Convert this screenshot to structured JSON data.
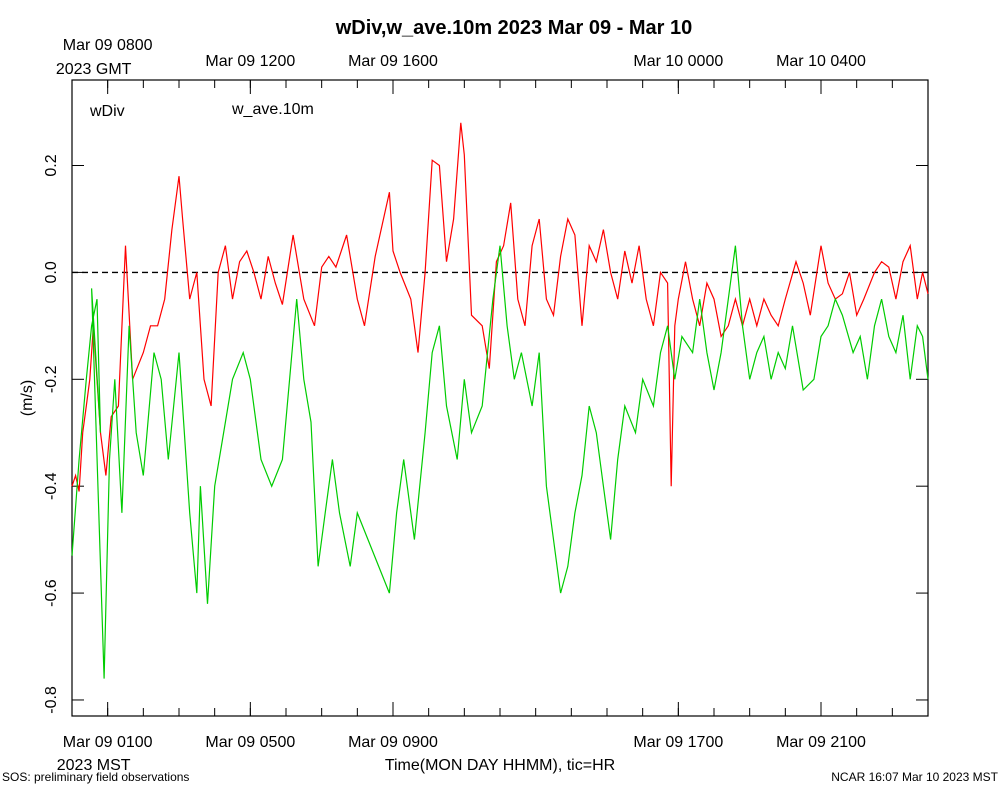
{
  "chart_data": {
    "type": "line",
    "title": "wDiv,w_ave.10m 2023 Mar 09 - Mar 10",
    "xlabel": "Time(MON DAY HHMM), tic=HR",
    "ylabel": "(m/s)",
    "x_unit": "hours since Mar 09 0000 MST",
    "xlim": [
      0,
      24
    ],
    "ylim": [
      -0.83,
      0.36
    ],
    "yticks": [
      0.2,
      0.0,
      -0.2,
      -0.4,
      -0.6,
      -0.8
    ],
    "ytick_labels": [
      "0.2",
      "0.0",
      "-0.2",
      "-0.4",
      "-0.6",
      "-0.8"
    ],
    "bottom_ticks": [
      {
        "x": 1,
        "label": "Mar 09 0100",
        "sub": "2023 MST"
      },
      {
        "x": 5,
        "label": "Mar 09 0500"
      },
      {
        "x": 9,
        "label": "Mar 09 0900"
      },
      {
        "x": 17,
        "label": "Mar 09 1700"
      },
      {
        "x": 21,
        "label": "Mar 09 2100"
      }
    ],
    "top_ticks": [
      {
        "x": 1,
        "label": "Mar 09 0800",
        "sub": "2023 GMT"
      },
      {
        "x": 5,
        "label": "Mar 09 1200"
      },
      {
        "x": 9,
        "label": "Mar 09 1600"
      },
      {
        "x": 17,
        "label": "Mar 10 0000"
      },
      {
        "x": 21,
        "label": "Mar 10 0400"
      }
    ],
    "reference_line": 0.0,
    "series": [
      {
        "name": "wDiv",
        "color": "#ff0000",
        "keypoints": [
          [
            0.0,
            -0.4
          ],
          [
            0.1,
            -0.38
          ],
          [
            0.2,
            -0.41
          ],
          [
            0.3,
            -0.3
          ],
          [
            0.4,
            -0.25
          ],
          [
            0.5,
            -0.2
          ],
          [
            0.6,
            -0.1
          ],
          [
            0.8,
            -0.3
          ],
          [
            0.95,
            -0.38
          ],
          [
            1.1,
            -0.27
          ],
          [
            1.3,
            -0.25
          ],
          [
            1.5,
            0.05
          ],
          [
            1.7,
            -0.2
          ],
          [
            2.0,
            -0.15
          ],
          [
            2.2,
            -0.1
          ],
          [
            2.4,
            -0.1
          ],
          [
            2.6,
            -0.05
          ],
          [
            2.8,
            0.08
          ],
          [
            3.0,
            0.18
          ],
          [
            3.1,
            0.1
          ],
          [
            3.3,
            -0.05
          ],
          [
            3.5,
            0.0
          ],
          [
            3.7,
            -0.2
          ],
          [
            3.9,
            -0.25
          ],
          [
            4.1,
            0.0
          ],
          [
            4.3,
            0.05
          ],
          [
            4.5,
            -0.05
          ],
          [
            4.7,
            0.02
          ],
          [
            4.9,
            0.04
          ],
          [
            5.1,
            0.0
          ],
          [
            5.3,
            -0.05
          ],
          [
            5.5,
            0.03
          ],
          [
            5.7,
            -0.02
          ],
          [
            5.9,
            -0.06
          ],
          [
            6.2,
            0.07
          ],
          [
            6.5,
            -0.05
          ],
          [
            6.8,
            -0.1
          ],
          [
            7.0,
            0.01
          ],
          [
            7.2,
            0.03
          ],
          [
            7.4,
            0.01
          ],
          [
            7.7,
            0.07
          ],
          [
            8.0,
            -0.05
          ],
          [
            8.2,
            -0.1
          ],
          [
            8.5,
            0.03
          ],
          [
            8.7,
            0.09
          ],
          [
            8.9,
            0.15
          ],
          [
            9.0,
            0.04
          ],
          [
            9.2,
            0.0
          ],
          [
            9.5,
            -0.05
          ],
          [
            9.7,
            -0.15
          ],
          [
            9.9,
            0.0
          ],
          [
            10.1,
            0.21
          ],
          [
            10.3,
            0.2
          ],
          [
            10.5,
            0.02
          ],
          [
            10.7,
            0.1
          ],
          [
            10.9,
            0.28
          ],
          [
            11.0,
            0.22
          ],
          [
            11.2,
            -0.08
          ],
          [
            11.5,
            -0.1
          ],
          [
            11.7,
            -0.18
          ],
          [
            11.9,
            0.02
          ],
          [
            12.1,
            0.05
          ],
          [
            12.3,
            0.13
          ],
          [
            12.5,
            -0.05
          ],
          [
            12.7,
            -0.1
          ],
          [
            12.9,
            0.05
          ],
          [
            13.1,
            0.1
          ],
          [
            13.3,
            -0.05
          ],
          [
            13.5,
            -0.08
          ],
          [
            13.7,
            0.03
          ],
          [
            13.9,
            0.1
          ],
          [
            14.1,
            0.07
          ],
          [
            14.3,
            -0.1
          ],
          [
            14.5,
            0.05
          ],
          [
            14.7,
            0.02
          ],
          [
            14.9,
            0.08
          ],
          [
            15.1,
            0.0
          ],
          [
            15.3,
            -0.05
          ],
          [
            15.5,
            0.04
          ],
          [
            15.7,
            -0.02
          ],
          [
            15.9,
            0.05
          ],
          [
            16.1,
            -0.05
          ],
          [
            16.3,
            -0.1
          ],
          [
            16.5,
            0.0
          ],
          [
            16.7,
            -0.02
          ],
          [
            16.8,
            -0.4
          ],
          [
            16.9,
            -0.1
          ],
          [
            17.0,
            -0.05
          ],
          [
            17.2,
            0.02
          ],
          [
            17.4,
            -0.05
          ],
          [
            17.6,
            -0.1
          ],
          [
            17.8,
            -0.02
          ],
          [
            18.0,
            -0.05
          ],
          [
            18.2,
            -0.12
          ],
          [
            18.4,
            -0.1
          ],
          [
            18.6,
            -0.05
          ],
          [
            18.8,
            -0.1
          ],
          [
            19.0,
            -0.05
          ],
          [
            19.2,
            -0.1
          ],
          [
            19.4,
            -0.05
          ],
          [
            19.6,
            -0.08
          ],
          [
            19.8,
            -0.1
          ],
          [
            20.0,
            -0.05
          ],
          [
            20.3,
            0.02
          ],
          [
            20.5,
            -0.02
          ],
          [
            20.7,
            -0.08
          ],
          [
            21.0,
            0.05
          ],
          [
            21.2,
            -0.02
          ],
          [
            21.4,
            -0.05
          ],
          [
            21.6,
            -0.04
          ],
          [
            21.8,
            0.0
          ],
          [
            22.0,
            -0.08
          ],
          [
            22.2,
            -0.05
          ],
          [
            22.5,
            0.0
          ],
          [
            22.7,
            0.02
          ],
          [
            22.9,
            0.01
          ],
          [
            23.1,
            -0.05
          ],
          [
            23.3,
            0.02
          ],
          [
            23.5,
            0.05
          ],
          [
            23.7,
            -0.05
          ],
          [
            23.85,
            0.0
          ],
          [
            24.0,
            -0.04
          ]
        ]
      },
      {
        "name": "w_ave.10m",
        "color": "#00cc00",
        "keypoints": [
          [
            0.0,
            -0.53
          ],
          [
            0.2,
            -0.35
          ],
          [
            0.4,
            -0.2
          ],
          [
            0.55,
            -0.1
          ],
          [
            0.7,
            -0.05
          ],
          [
            0.8,
            -0.3
          ],
          [
            0.55,
            -0.03
          ],
          [
            0.9,
            -0.76
          ],
          [
            1.05,
            -0.35
          ],
          [
            1.2,
            -0.2
          ],
          [
            1.4,
            -0.45
          ],
          [
            1.6,
            -0.1
          ],
          [
            1.8,
            -0.3
          ],
          [
            2.0,
            -0.38
          ],
          [
            2.3,
            -0.15
          ],
          [
            2.5,
            -0.2
          ],
          [
            2.7,
            -0.35
          ],
          [
            3.0,
            -0.15
          ],
          [
            3.3,
            -0.45
          ],
          [
            3.5,
            -0.6
          ],
          [
            3.6,
            -0.4
          ],
          [
            3.8,
            -0.62
          ],
          [
            4.0,
            -0.4
          ],
          [
            4.3,
            -0.28
          ],
          [
            4.5,
            -0.2
          ],
          [
            4.8,
            -0.15
          ],
          [
            5.0,
            -0.2
          ],
          [
            5.3,
            -0.35
          ],
          [
            5.6,
            -0.4
          ],
          [
            5.9,
            -0.35
          ],
          [
            6.1,
            -0.2
          ],
          [
            6.3,
            -0.05
          ],
          [
            6.5,
            -0.2
          ],
          [
            6.7,
            -0.28
          ],
          [
            6.9,
            -0.55
          ],
          [
            7.1,
            -0.45
          ],
          [
            7.3,
            -0.35
          ],
          [
            7.5,
            -0.45
          ],
          [
            7.8,
            -0.55
          ],
          [
            8.0,
            -0.45
          ],
          [
            8.3,
            -0.5
          ],
          [
            8.6,
            -0.55
          ],
          [
            8.9,
            -0.6
          ],
          [
            9.1,
            -0.45
          ],
          [
            9.3,
            -0.35
          ],
          [
            9.6,
            -0.5
          ],
          [
            9.9,
            -0.3
          ],
          [
            10.1,
            -0.15
          ],
          [
            10.3,
            -0.1
          ],
          [
            10.5,
            -0.25
          ],
          [
            10.8,
            -0.35
          ],
          [
            11.0,
            -0.2
          ],
          [
            11.2,
            -0.3
          ],
          [
            11.5,
            -0.25
          ],
          [
            11.8,
            -0.05
          ],
          [
            12.0,
            0.05
          ],
          [
            12.2,
            -0.1
          ],
          [
            12.4,
            -0.2
          ],
          [
            12.6,
            -0.15
          ],
          [
            12.9,
            -0.25
          ],
          [
            13.1,
            -0.15
          ],
          [
            13.3,
            -0.4
          ],
          [
            13.5,
            -0.5
          ],
          [
            13.7,
            -0.6
          ],
          [
            13.9,
            -0.55
          ],
          [
            14.1,
            -0.45
          ],
          [
            14.3,
            -0.38
          ],
          [
            14.5,
            -0.25
          ],
          [
            14.7,
            -0.3
          ],
          [
            14.9,
            -0.4
          ],
          [
            15.1,
            -0.5
          ],
          [
            15.3,
            -0.35
          ],
          [
            15.5,
            -0.25
          ],
          [
            15.8,
            -0.3
          ],
          [
            16.0,
            -0.2
          ],
          [
            16.3,
            -0.25
          ],
          [
            16.5,
            -0.15
          ],
          [
            16.7,
            -0.1
          ],
          [
            16.9,
            -0.2
          ],
          [
            17.1,
            -0.12
          ],
          [
            17.4,
            -0.15
          ],
          [
            17.6,
            -0.05
          ],
          [
            17.8,
            -0.15
          ],
          [
            18.0,
            -0.22
          ],
          [
            18.2,
            -0.15
          ],
          [
            18.4,
            -0.05
          ],
          [
            18.6,
            0.05
          ],
          [
            18.8,
            -0.1
          ],
          [
            19.0,
            -0.2
          ],
          [
            19.2,
            -0.15
          ],
          [
            19.4,
            -0.12
          ],
          [
            19.6,
            -0.2
          ],
          [
            19.8,
            -0.15
          ],
          [
            20.0,
            -0.18
          ],
          [
            20.2,
            -0.1
          ],
          [
            20.5,
            -0.22
          ],
          [
            20.8,
            -0.2
          ],
          [
            21.0,
            -0.12
          ],
          [
            21.2,
            -0.1
          ],
          [
            21.4,
            -0.05
          ],
          [
            21.6,
            -0.08
          ],
          [
            21.9,
            -0.15
          ],
          [
            22.1,
            -0.12
          ],
          [
            22.3,
            -0.2
          ],
          [
            22.5,
            -0.1
          ],
          [
            22.7,
            -0.05
          ],
          [
            22.9,
            -0.12
          ],
          [
            23.1,
            -0.15
          ],
          [
            23.3,
            -0.08
          ],
          [
            23.5,
            -0.2
          ],
          [
            23.7,
            -0.1
          ],
          [
            23.85,
            -0.12
          ],
          [
            24.0,
            -0.2
          ]
        ]
      }
    ]
  },
  "footer": {
    "left": "SOS: preliminary field observations",
    "right": "NCAR 16:07 Mar 10 2023 MST"
  }
}
